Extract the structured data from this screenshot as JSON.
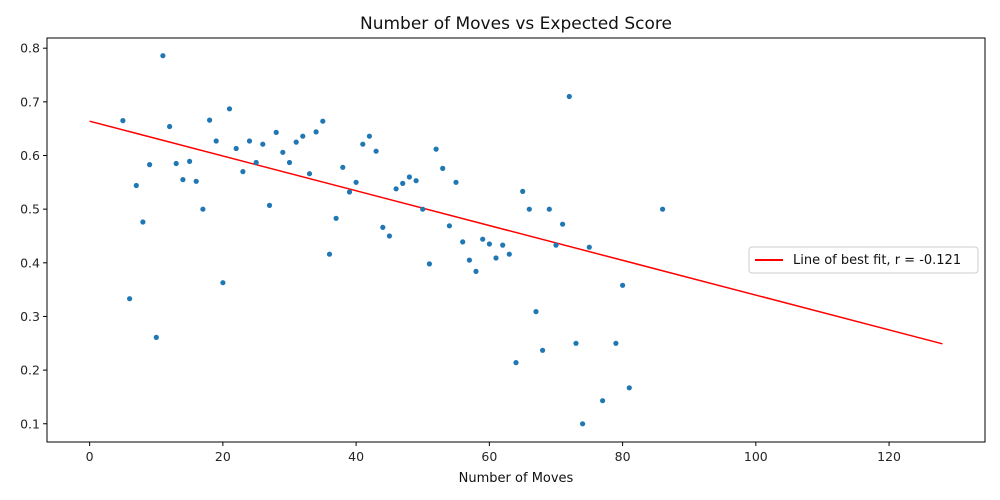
{
  "chart_data": {
    "type": "scatter",
    "title": "Number of Moves vs Expected Score",
    "xlabel": "Number of Moves",
    "ylabel": "",
    "xlim": [
      -6.4,
      134.4
    ],
    "ylim": [
      0.066,
      0.819
    ],
    "xticks": [
      0,
      20,
      40,
      60,
      80,
      100,
      120
    ],
    "yticks": [
      0.1,
      0.2,
      0.3,
      0.4,
      0.5,
      0.6,
      0.7,
      0.8
    ],
    "grid": false,
    "legend_position": "center-right",
    "colors": {
      "points": "#1f77b4",
      "fit_line": "#ff0000",
      "axes": "#000000"
    },
    "series": [
      {
        "marker": "dot",
        "points": [
          [
            5,
            0.665
          ],
          [
            6,
            0.333
          ],
          [
            7,
            0.544
          ],
          [
            8,
            0.476
          ],
          [
            9,
            0.583
          ],
          [
            10,
            0.261
          ],
          [
            11,
            0.786
          ],
          [
            12,
            0.654
          ],
          [
            13,
            0.585
          ],
          [
            14,
            0.555
          ],
          [
            15,
            0.589
          ],
          [
            16,
            0.552
          ],
          [
            17,
            0.5
          ],
          [
            18,
            0.666
          ],
          [
            19,
            0.627
          ],
          [
            20,
            0.363
          ],
          [
            21,
            0.687
          ],
          [
            22,
            0.613
          ],
          [
            23,
            0.57
          ],
          [
            24,
            0.627
          ],
          [
            25,
            0.587
          ],
          [
            26,
            0.621
          ],
          [
            27,
            0.507
          ],
          [
            28,
            0.643
          ],
          [
            29,
            0.606
          ],
          [
            30,
            0.587
          ],
          [
            31,
            0.625
          ],
          [
            32,
            0.636
          ],
          [
            33,
            0.566
          ],
          [
            34,
            0.644
          ],
          [
            35,
            0.664
          ],
          [
            36,
            0.416
          ],
          [
            37,
            0.483
          ],
          [
            38,
            0.578
          ],
          [
            39,
            0.532
          ],
          [
            40,
            0.55
          ],
          [
            41,
            0.621
          ],
          [
            42,
            0.636
          ],
          [
            43,
            0.608
          ],
          [
            44,
            0.466
          ],
          [
            45,
            0.45
          ],
          [
            46,
            0.538
          ],
          [
            47,
            0.548
          ],
          [
            48,
            0.56
          ],
          [
            49,
            0.553
          ],
          [
            50,
            0.5
          ],
          [
            51,
            0.398
          ],
          [
            52,
            0.612
          ],
          [
            53,
            0.576
          ],
          [
            54,
            0.469
          ],
          [
            55,
            0.55
          ],
          [
            56,
            0.439
          ],
          [
            57,
            0.405
          ],
          [
            58,
            0.384
          ],
          [
            59,
            0.444
          ],
          [
            60,
            0.435
          ],
          [
            61,
            0.409
          ],
          [
            62,
            0.433
          ],
          [
            63,
            0.416
          ],
          [
            64,
            0.214
          ],
          [
            65,
            0.533
          ],
          [
            66,
            0.5
          ],
          [
            67,
            0.309
          ],
          [
            68,
            0.237
          ],
          [
            69,
            0.5
          ],
          [
            70,
            0.433
          ],
          [
            71,
            0.472
          ],
          [
            72,
            0.71
          ],
          [
            73,
            0.25
          ],
          [
            74,
            0.1
          ],
          [
            75,
            0.429
          ],
          [
            77,
            0.143
          ],
          [
            79,
            0.25
          ],
          [
            80,
            0.358
          ],
          [
            81,
            0.167
          ],
          [
            86,
            0.5
          ]
        ]
      },
      {
        "name": "Line of best fit, r = -0.121",
        "type": "line",
        "points": [
          [
            0,
            0.664
          ],
          [
            128,
            0.249
          ]
        ]
      }
    ]
  }
}
